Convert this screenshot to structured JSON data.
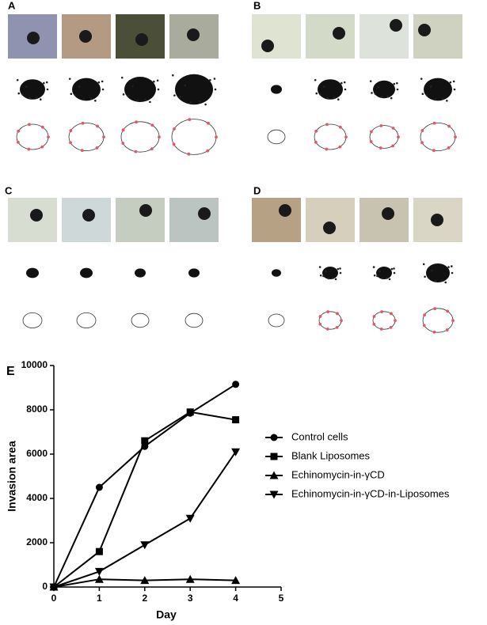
{
  "panels": [
    {
      "label": "A"
    },
    {
      "label": "B"
    },
    {
      "label": "C"
    },
    {
      "label": "D"
    }
  ],
  "chart_data": {
    "type": "line",
    "panel_label": "E",
    "x_label": "Day",
    "y_label": "Invasion area",
    "x": [
      0,
      1,
      2,
      3,
      4
    ],
    "xlim": [
      0,
      5
    ],
    "xticks": [
      0,
      1,
      2,
      3,
      4,
      5
    ],
    "ylim": [
      0,
      10000
    ],
    "yticks": [
      0,
      2000,
      4000,
      6000,
      8000,
      10000
    ],
    "legend": "right",
    "series": [
      {
        "name": "Control cells",
        "color": "#000000",
        "marker": "circle",
        "values": [
          0,
          4500,
          6350,
          7850,
          9150
        ]
      },
      {
        "name": "Blank Liposomes",
        "color": "#000000",
        "marker": "square",
        "values": [
          0,
          1600,
          6600,
          7900,
          7550
        ]
      },
      {
        "name": "Echinomycin-in-γCD",
        "color": "#000000",
        "marker": "triangle-up",
        "values": [
          0,
          350,
          300,
          350,
          300
        ]
      },
      {
        "name": "Echinomycin-in-γCD-in-Liposomes",
        "color": "#000000",
        "marker": "triangle-down",
        "values": [
          0,
          700,
          1900,
          3100,
          6100
        ]
      }
    ]
  }
}
